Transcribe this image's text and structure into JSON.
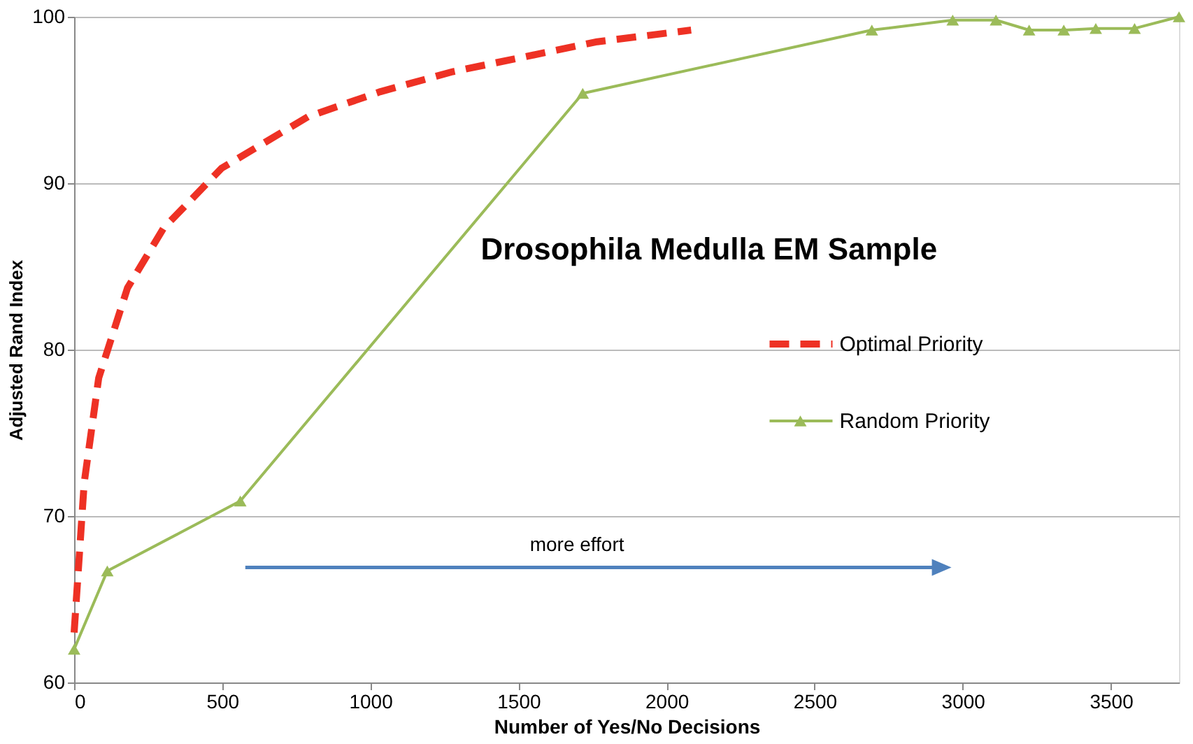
{
  "chart_data": {
    "type": "line",
    "title": "Drosophila Medulla EM Sample",
    "xlabel": "Number of Yes/No Decisions",
    "ylabel": "Adjusted Rand Index",
    "xlim": [
      0,
      3730
    ],
    "xticks": [
      0,
      500,
      {
        "value": 1000,
        "label": "1000"
      },
      {
        "value": 1500,
        "label": "1500"
      },
      {
        "value": 2000,
        "label": "2000"
      },
      {
        "value": 2500,
        "label": "2500"
      },
      {
        "value": 3000,
        "label": "3000"
      },
      {
        "value": 3500,
        "label": "3500"
      }
    ],
    "ylim": [
      60,
      100
    ],
    "yticks": [
      60,
      70,
      80,
      90,
      100
    ],
    "grid": "y",
    "legend": "right",
    "series": [
      {
        "name": "Optimal Priority",
        "color": "#ee3124",
        "line_style": "dashed",
        "marker": "none",
        "x": [
          0,
          34,
          83,
          180,
          302,
          498,
          790,
          1034,
          1278,
          1522,
          1766,
          2083
        ],
        "values": [
          63,
          72,
          78.3,
          83.7,
          87.3,
          90.9,
          94,
          95.5,
          96.7,
          97.6,
          98.5,
          99.2
        ]
      },
      {
        "name": "Random Priority",
        "color": "#9bbb59",
        "line_style": "solid",
        "marker": "triangle",
        "x": [
          0,
          112,
          561,
          1717,
          2693,
          2966,
          3112,
          3224,
          3341,
          3449,
          3580,
          3730
        ],
        "values": [
          62,
          66.7,
          70.9,
          95.4,
          99.2,
          99.8,
          99.8,
          99.2,
          99.2,
          99.3,
          99.3,
          100
        ]
      }
    ],
    "annotations": [
      "more effort"
    ]
  }
}
